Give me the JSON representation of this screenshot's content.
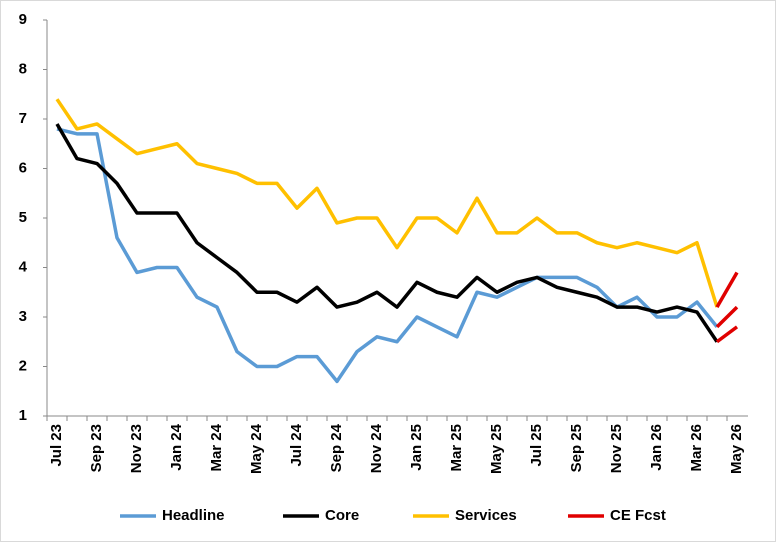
{
  "chart_data": {
    "type": "line",
    "categories": [
      "Jul 23",
      null,
      "Sep 23",
      null,
      "Nov 23",
      null,
      "Jan 24",
      null,
      "Mar 24",
      null,
      "May 24",
      null,
      "Jul 24",
      null,
      "Sep 24",
      null,
      "Nov 24",
      null,
      "Jan 25",
      null,
      "Mar 25",
      null,
      "May 25",
      null,
      "Jul 25",
      null,
      "Sep 25",
      null,
      "Nov 25",
      null,
      "Jan 26",
      null,
      "Mar 26",
      null,
      "May 26"
    ],
    "series": [
      {
        "name": "Headline",
        "color": "#5b9bd5",
        "values": [
          6.8,
          6.7,
          6.7,
          4.6,
          3.9,
          4.0,
          4.0,
          3.4,
          3.2,
          2.3,
          2.0,
          2.0,
          2.2,
          2.2,
          1.7,
          2.3,
          2.6,
          2.5,
          3.0,
          2.8,
          2.6,
          3.5,
          3.4,
          3.6,
          3.8,
          3.8,
          3.8,
          3.6,
          3.2,
          3.4,
          3.0,
          3.0,
          3.3,
          2.8,
          null
        ]
      },
      {
        "name": "Core",
        "color": "#000000",
        "values": [
          6.9,
          6.2,
          6.1,
          5.7,
          5.1,
          5.1,
          5.1,
          4.5,
          4.2,
          3.9,
          3.5,
          3.5,
          3.3,
          3.6,
          3.2,
          3.3,
          3.5,
          3.2,
          3.7,
          3.5,
          3.4,
          3.8,
          3.5,
          3.7,
          3.8,
          3.6,
          3.5,
          3.4,
          3.2,
          3.2,
          3.1,
          3.2,
          3.1,
          2.5,
          null
        ]
      },
      {
        "name": "Services",
        "color": "#ffc000",
        "values": [
          7.4,
          6.8,
          6.9,
          6.6,
          6.3,
          6.4,
          6.5,
          6.1,
          6.0,
          5.9,
          5.7,
          5.7,
          5.2,
          5.6,
          4.9,
          5.0,
          5.0,
          4.4,
          5.0,
          5.0,
          4.7,
          5.4,
          4.7,
          4.7,
          5.0,
          4.7,
          4.7,
          4.5,
          4.4,
          4.5,
          4.4,
          4.3,
          4.5,
          3.2,
          null
        ]
      },
      {
        "name": "CE Fcst",
        "color": "#e00000",
        "segments": [
          [
            null,
            null,
            null,
            null,
            null,
            null,
            null,
            null,
            null,
            null,
            null,
            null,
            null,
            null,
            null,
            null,
            null,
            null,
            null,
            null,
            null,
            null,
            null,
            null,
            null,
            null,
            null,
            null,
            null,
            null,
            null,
            null,
            null,
            3.2,
            3.9
          ],
          [
            null,
            null,
            null,
            null,
            null,
            null,
            null,
            null,
            null,
            null,
            null,
            null,
            null,
            null,
            null,
            null,
            null,
            null,
            null,
            null,
            null,
            null,
            null,
            null,
            null,
            null,
            null,
            null,
            null,
            null,
            null,
            null,
            null,
            2.8,
            3.2
          ],
          [
            null,
            null,
            null,
            null,
            null,
            null,
            null,
            null,
            null,
            null,
            null,
            null,
            null,
            null,
            null,
            null,
            null,
            null,
            null,
            null,
            null,
            null,
            null,
            null,
            null,
            null,
            null,
            null,
            null,
            null,
            null,
            null,
            null,
            2.5,
            2.8
          ]
        ]
      }
    ],
    "ylim": [
      1,
      9
    ],
    "yticks": [
      1,
      2,
      3,
      4,
      5,
      6,
      7,
      8,
      9
    ],
    "grid": false,
    "legend": "bottom"
  }
}
